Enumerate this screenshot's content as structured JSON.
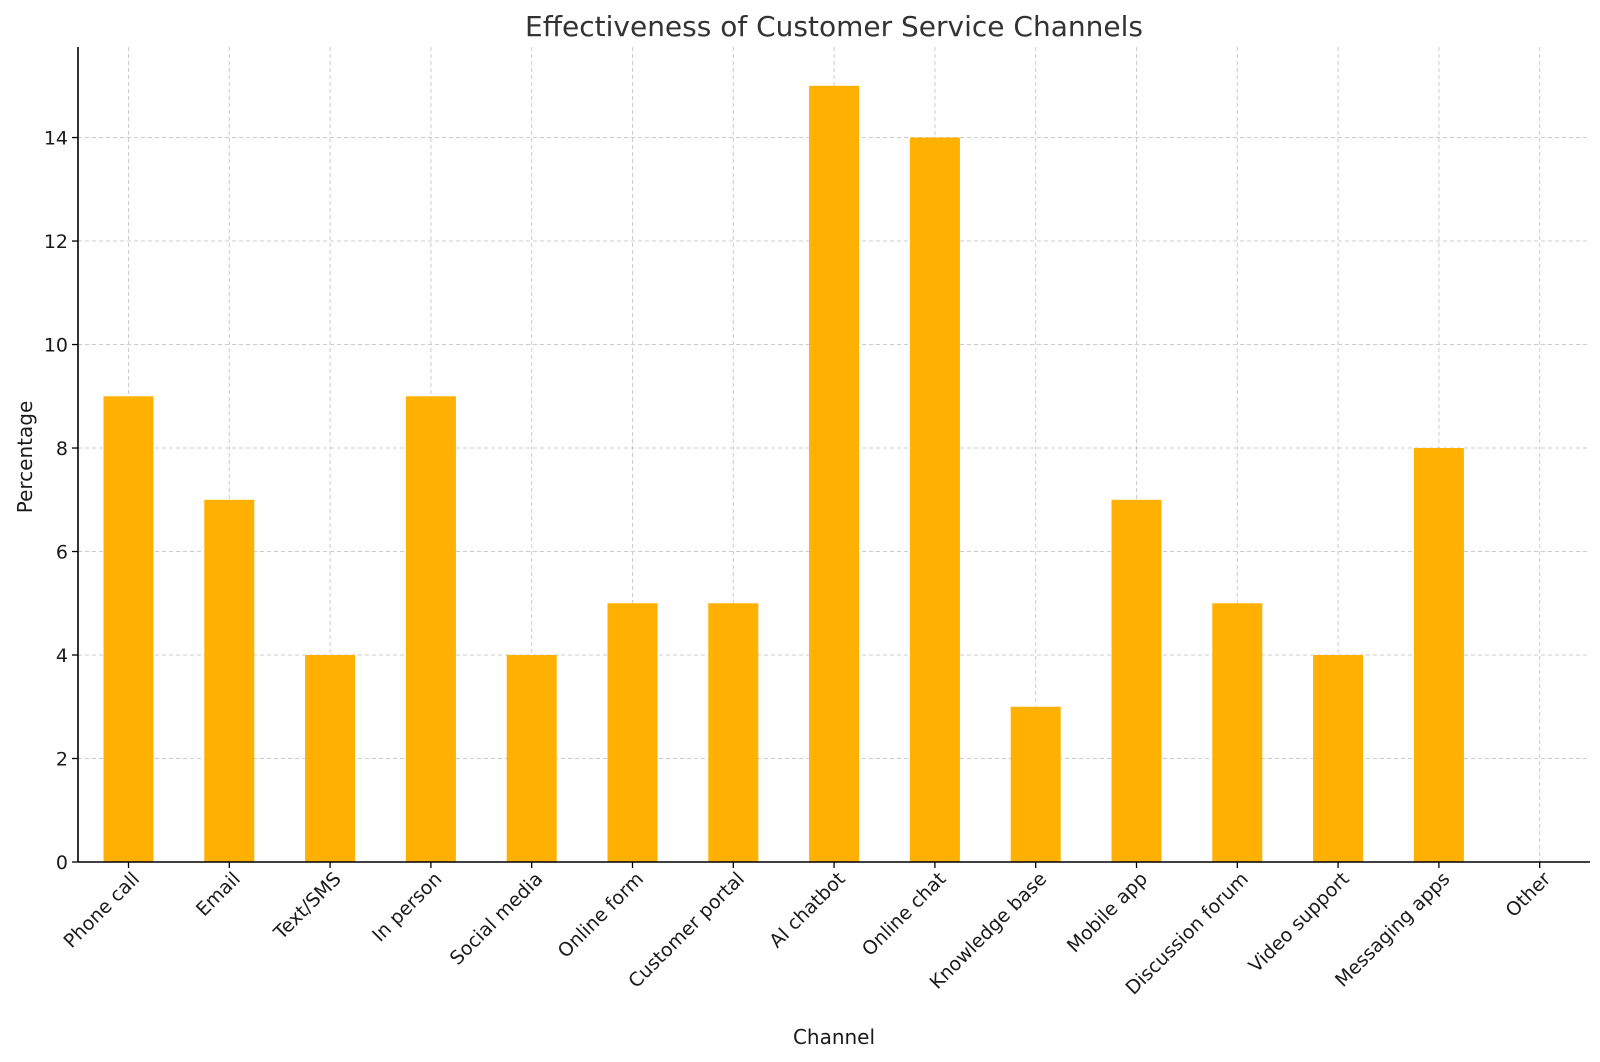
{
  "chart_data": {
    "type": "bar",
    "title": "Effectiveness of Customer Service Channels",
    "xlabel": "Channel",
    "ylabel": "Percentage",
    "categories": [
      "Phone call",
      "Email",
      "Text/SMS",
      "In person",
      "Social media",
      "Online form",
      "Customer portal",
      "AI chatbot",
      "Online chat",
      "Knowledge base",
      "Mobile app",
      "Discussion forum",
      "Video support",
      "Messaging apps",
      "Other"
    ],
    "values": [
      9,
      7,
      4,
      9,
      4,
      5,
      5,
      15,
      14,
      3,
      7,
      5,
      4,
      8,
      0
    ],
    "ylim": [
      0,
      15.75
    ],
    "yticks": [
      0,
      2,
      4,
      6,
      8,
      10,
      12,
      14
    ],
    "grid": true,
    "bar_color": "#FFB000"
  }
}
